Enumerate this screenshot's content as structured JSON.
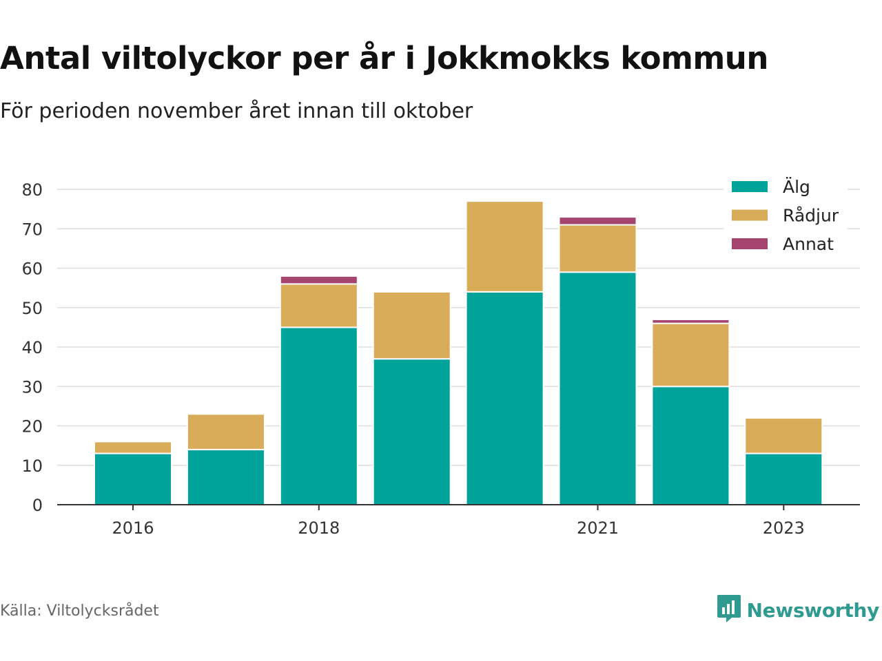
{
  "title": "Antal viltolyckor per år i Jokkmokks kommun",
  "subtitle": "För perioden november året innan till oktober",
  "source": "Källa: Viltolycksrådet",
  "brand": {
    "name": "Newsworthy",
    "icon": "newsworthy-logo-icon",
    "color": "#2f9a8f"
  },
  "chart_data": {
    "type": "bar",
    "stacked": true,
    "x": [
      2016,
      2017,
      2018,
      2019,
      2020,
      2021,
      2022,
      2023
    ],
    "x_tick_labels": [
      "2016",
      "2018",
      "2021",
      "2023"
    ],
    "series": [
      {
        "name": "Älg",
        "color": "#00a39a",
        "values": [
          13,
          14,
          45,
          37,
          54,
          59,
          30,
          13
        ]
      },
      {
        "name": "Rådjur",
        "color": "#d9ac59",
        "values": [
          3,
          9,
          11,
          17,
          23,
          12,
          16,
          9
        ]
      },
      {
        "name": "Annat",
        "color": "#a64470",
        "values": [
          0,
          0,
          2,
          0,
          0,
          2,
          1,
          0
        ]
      }
    ],
    "ylim": [
      0,
      80
    ],
    "y_ticks": [
      0,
      10,
      20,
      30,
      40,
      50,
      60,
      70,
      80
    ],
    "grid": true,
    "legend_position": "top-right"
  }
}
